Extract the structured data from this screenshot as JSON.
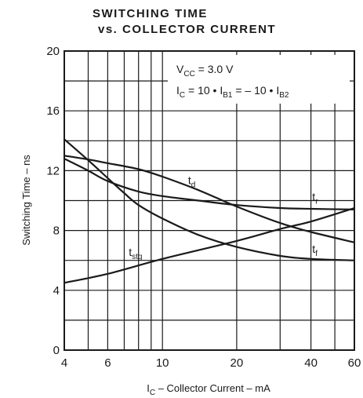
{
  "chart_data": {
    "type": "line",
    "title_line1": "SWITCHING TIME",
    "title_line2": "vs. COLLECTOR CURRENT",
    "xlabel_main": "I",
    "xlabel_sub": "C",
    "xlabel_rest": " – Collector  Current – mA",
    "ylabel": "Switching Time – ns",
    "x_scale": "log",
    "xlim": [
      4,
      60
    ],
    "ylim": [
      0,
      20
    ],
    "x_ticks": [
      4,
      6,
      10,
      20,
      40,
      60
    ],
    "x_tick_labels": [
      "4",
      "6",
      "10",
      "20",
      "40",
      "60"
    ],
    "x_minor_grid": [
      5,
      7,
      8,
      9,
      30,
      50
    ],
    "y_ticks": [
      0,
      4,
      8,
      12,
      16,
      20
    ],
    "y_tick_labels": [
      "0",
      "4",
      "8",
      "12",
      "16",
      "20"
    ],
    "y_minor_grid": [
      2,
      6,
      10,
      14,
      18
    ],
    "grid": true,
    "conditions": {
      "line1_main": "V",
      "line1_sub": "CC",
      "line1_rest": " = 3.0  V",
      "line2_a": "I",
      "line2_a_sub": "C",
      "line2_b": " = 10 • I",
      "line2_b_sub": "B1",
      "line2_c": " = – 10 • I",
      "line2_c_sub": "B2"
    },
    "series": [
      {
        "name_main": "t",
        "name_sub": "d",
        "label_x": 12.7,
        "label_y": 11.1,
        "x": [
          4,
          5,
          6,
          8,
          10,
          14,
          20,
          30,
          40,
          60
        ],
        "y": [
          13.0,
          12.75,
          12.5,
          12.1,
          11.6,
          10.7,
          9.6,
          8.5,
          7.9,
          7.2
        ]
      },
      {
        "name_main": "t",
        "name_sub": "r",
        "label_x": 40.5,
        "label_y": 10.0,
        "x": [
          4,
          5,
          6,
          8,
          10,
          14,
          20,
          30,
          40,
          60
        ],
        "y": [
          12.8,
          12.0,
          11.3,
          10.6,
          10.3,
          10.0,
          9.7,
          9.5,
          9.45,
          9.4
        ]
      },
      {
        "name_main": "t",
        "name_sub": "stg",
        "label_x": 7.3,
        "label_y": 6.3,
        "x": [
          4,
          5,
          6,
          7,
          8,
          10,
          14,
          20,
          30,
          40,
          60
        ],
        "y": [
          14.1,
          12.7,
          11.5,
          10.5,
          9.7,
          8.8,
          7.7,
          6.9,
          6.3,
          6.1,
          6.0
        ]
      },
      {
        "name_main": "t",
        "name_sub": "f",
        "label_x": 40.5,
        "label_y": 6.5,
        "x": [
          4,
          6,
          10,
          20,
          30,
          40,
          60
        ],
        "y": [
          4.5,
          5.1,
          6.1,
          7.3,
          8.1,
          8.6,
          9.5
        ]
      }
    ]
  }
}
